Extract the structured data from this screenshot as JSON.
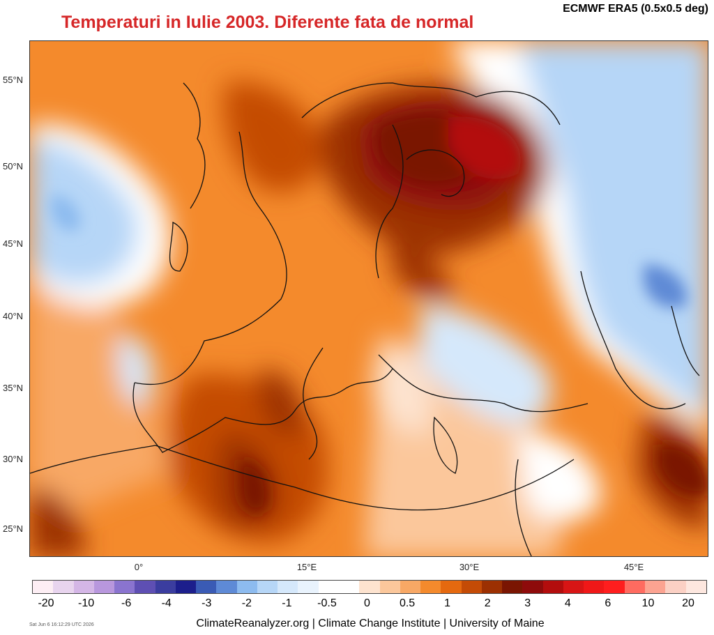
{
  "header": {
    "title": "Temperaturi in Iulie 2003. Diferente fata de normal",
    "source": "ECMWF ERA5 (0.5x0.5 deg)"
  },
  "axes": {
    "lat_labels": [
      "55°N",
      "50°N",
      "45°N",
      "40°N",
      "35°N",
      "30°N",
      "25°N"
    ],
    "lon_labels": [
      "0°",
      "15°E",
      "30°E",
      "45°E"
    ]
  },
  "legend": {
    "labels": [
      "-20",
      "-10",
      "-6",
      "-4",
      "-3",
      "-2",
      "-1",
      "-0.5",
      "0",
      "0.5",
      "1",
      "2",
      "3",
      "4",
      "6",
      "10",
      "20"
    ],
    "colors": [
      "#fdeef4",
      "#e8d4ee",
      "#d4b6e6",
      "#b897dd",
      "#8a74cf",
      "#5e4fb3",
      "#3b3d9f",
      "#1c1e8c",
      "#3a5bb5",
      "#5e8ad6",
      "#8dbbef",
      "#b6d6f7",
      "#d5e8fb",
      "#e9f3fd",
      "#ffffff",
      "#ffffff",
      "#fde3cf",
      "#fbc79b",
      "#f8a865",
      "#f48a2c",
      "#e5690f",
      "#c44b06",
      "#9c3002",
      "#7a1502",
      "#8e0b0b",
      "#b30d0d",
      "#d81515",
      "#f01818",
      "#ff1e1e",
      "#ff6b60",
      "#fca391",
      "#fbd0c4",
      "#fde7df"
    ]
  },
  "footer": {
    "credit": "ClimateReanalyzer.org | Climate Change Institute | University of Maine",
    "timestamp": "Sat Jun  6 16:12:29 UTC 2026"
  }
}
